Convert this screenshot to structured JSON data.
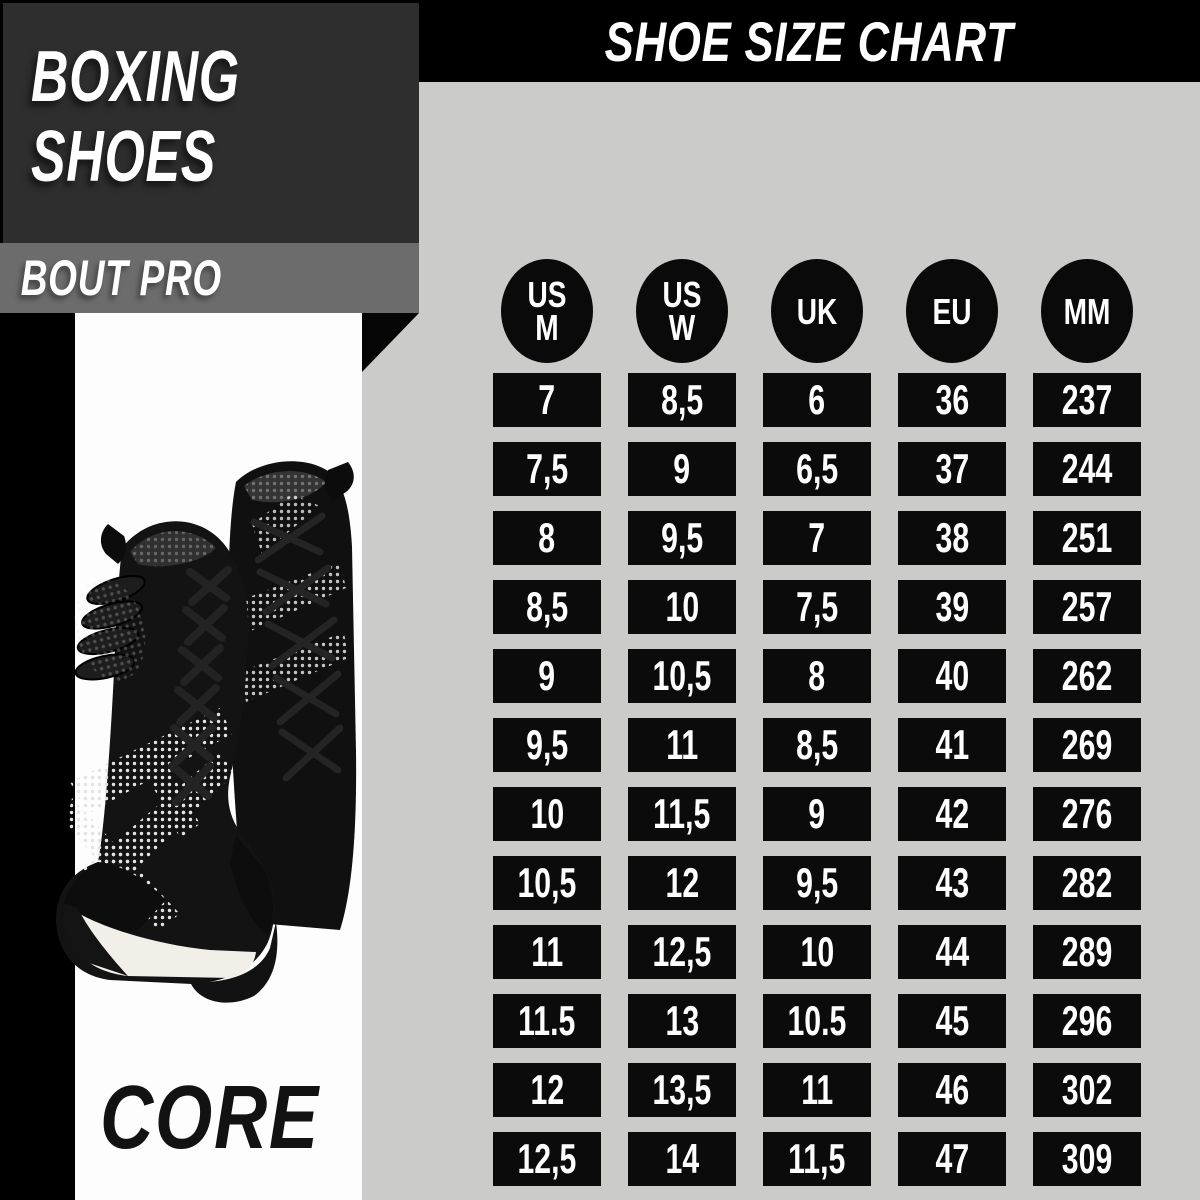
{
  "header": {
    "product_title_line1": "BOXING",
    "product_title_line2": "SHOES",
    "model_ribbon": "BOUT PRO",
    "chart_title": "SHOE SIZE CHART"
  },
  "brand": {
    "logo_text": "CORE"
  },
  "size_chart": {
    "columns": [
      {
        "label_lines": [
          "US",
          "M"
        ]
      },
      {
        "label_lines": [
          "US",
          "W"
        ]
      },
      {
        "label_lines": [
          "UK"
        ]
      },
      {
        "label_lines": [
          "EU"
        ]
      },
      {
        "label_lines": [
          "MM"
        ]
      }
    ],
    "rows": [
      [
        "7",
        "8,5",
        "6",
        "36",
        "237"
      ],
      [
        "7,5",
        "9",
        "6,5",
        "37",
        "244"
      ],
      [
        "8",
        "9,5",
        "7",
        "38",
        "251"
      ],
      [
        "8,5",
        "10",
        "7,5",
        "39",
        "257"
      ],
      [
        "9",
        "10,5",
        "8",
        "40",
        "262"
      ],
      [
        "9,5",
        "11",
        "8,5",
        "41",
        "269"
      ],
      [
        "10",
        "11,5",
        "9",
        "42",
        "276"
      ],
      [
        "10,5",
        "12",
        "9,5",
        "43",
        "282"
      ],
      [
        "11",
        "12,5",
        "10",
        "44",
        "289"
      ],
      [
        "11.5",
        "13",
        "10.5",
        "45",
        "296"
      ],
      [
        "12",
        "13,5",
        "11",
        "46",
        "302"
      ],
      [
        "12,5",
        "14",
        "11,5",
        "47",
        "309"
      ]
    ]
  },
  "shoe_image": {
    "description": "Pair of black high-top boxing shoes with white dotted web pattern and white midsole"
  },
  "colors": {
    "canvas_black": "#000000",
    "charcoal_box": "#2e2e2e",
    "ribbon_gray": "#6c6c6c",
    "chart_panel_gray": "#cbcbca",
    "photo_panel_white": "#fdfdfd",
    "cell_black": "#0b0b0b",
    "text_white": "#ffffff"
  }
}
